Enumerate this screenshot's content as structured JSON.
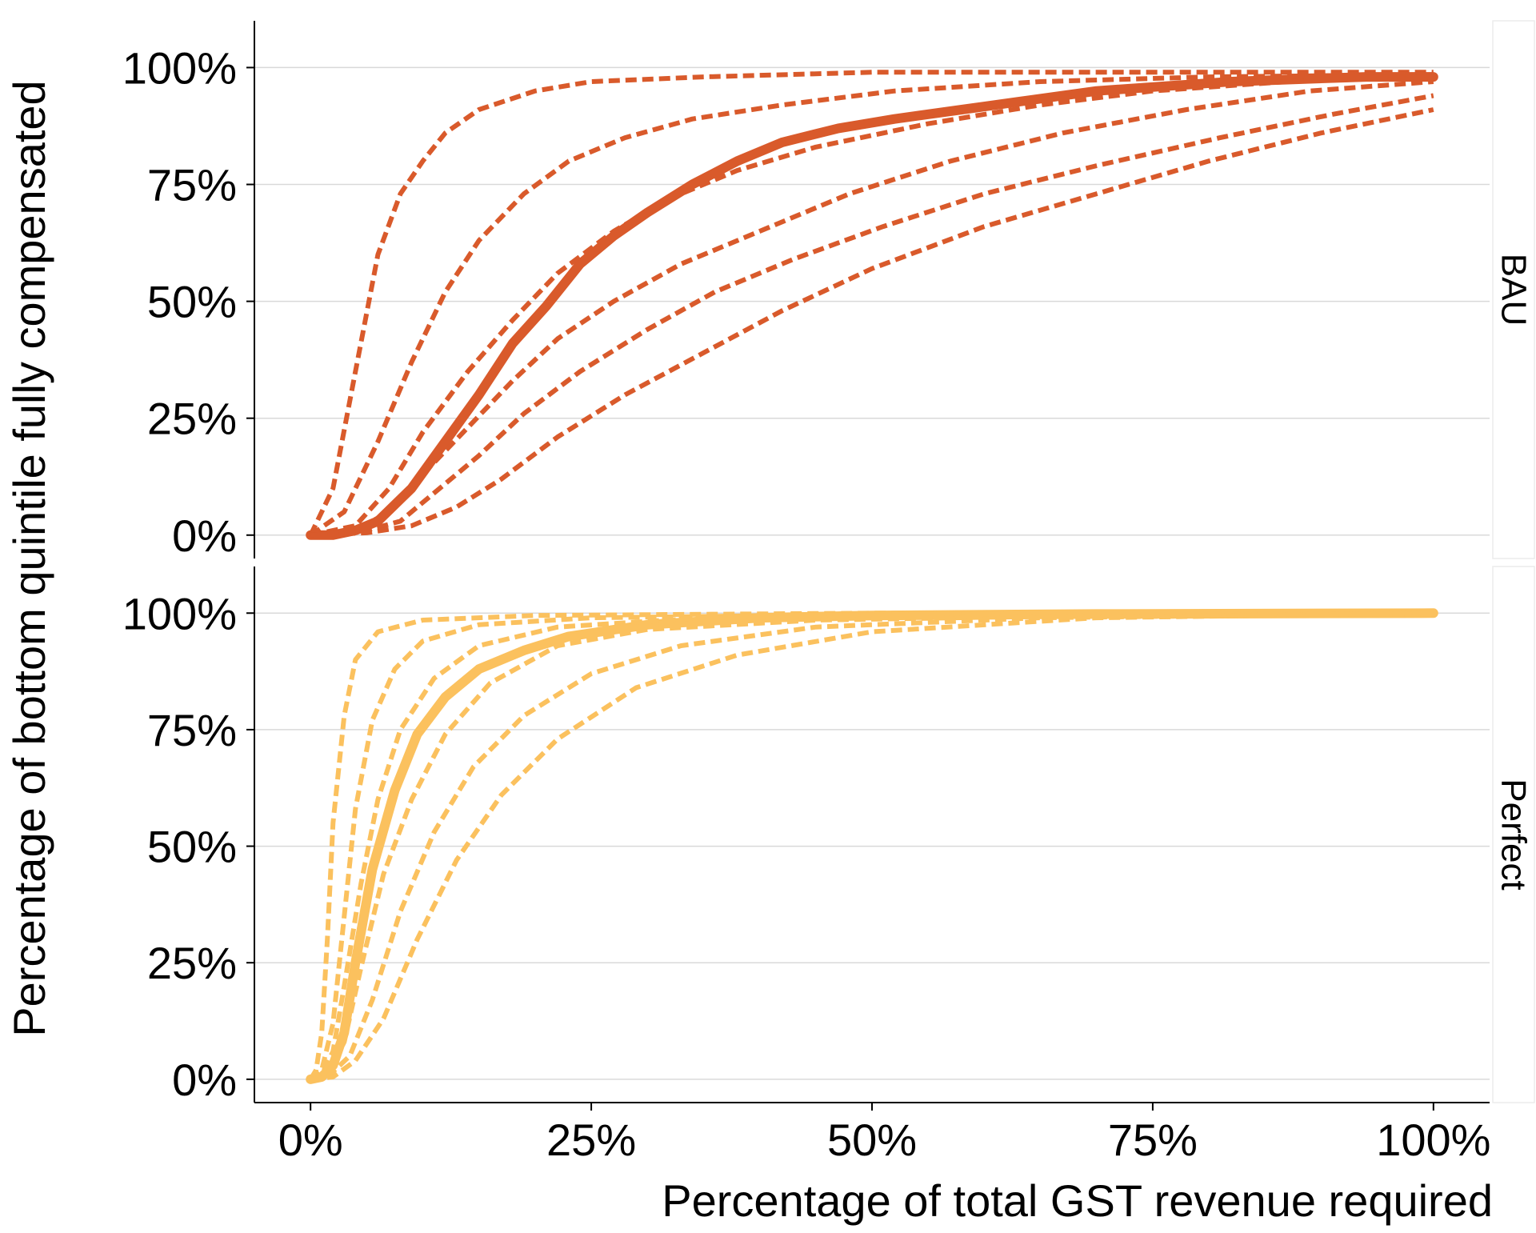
{
  "chart_data": {
    "type": "line",
    "xlabel": "Percentage of total GST revenue required",
    "ylabel": "Percentage of bottom quintile fully compensated",
    "xlim": [
      -0.05,
      1.05
    ],
    "x_ticks": [
      0,
      0.25,
      0.5,
      0.75,
      1.0
    ],
    "x_tick_labels": [
      "0%",
      "25%",
      "50%",
      "75%",
      "100%"
    ],
    "y_ticks": [
      0,
      0.25,
      0.5,
      0.75,
      1.0
    ],
    "y_tick_labels": [
      "0%",
      "25%",
      "50%",
      "75%",
      "100%"
    ],
    "ylim": [
      -0.05,
      1.1
    ],
    "grid": "horizontal",
    "legend": "none",
    "panels": [
      {
        "strip": "BAU",
        "color": "#d95a2b",
        "series": [
          {
            "style": "solid",
            "points": [
              [
                0,
                0
              ],
              [
                0.02,
                0
              ],
              [
                0.04,
                0.01
              ],
              [
                0.06,
                0.03
              ],
              [
                0.09,
                0.1
              ],
              [
                0.12,
                0.2
              ],
              [
                0.15,
                0.3
              ],
              [
                0.18,
                0.41
              ],
              [
                0.21,
                0.49
              ],
              [
                0.24,
                0.58
              ],
              [
                0.27,
                0.64
              ],
              [
                0.3,
                0.69
              ],
              [
                0.34,
                0.75
              ],
              [
                0.38,
                0.8
              ],
              [
                0.42,
                0.84
              ],
              [
                0.47,
                0.87
              ],
              [
                0.52,
                0.89
              ],
              [
                0.58,
                0.91
              ],
              [
                0.64,
                0.93
              ],
              [
                0.7,
                0.95
              ],
              [
                0.76,
                0.96
              ],
              [
                0.82,
                0.97
              ],
              [
                0.88,
                0.975
              ],
              [
                0.94,
                0.98
              ],
              [
                1.0,
                0.98
              ]
            ]
          },
          {
            "style": "dashed",
            "points": [
              [
                0,
                0
              ],
              [
                0.02,
                0.1
              ],
              [
                0.04,
                0.35
              ],
              [
                0.06,
                0.6
              ],
              [
                0.08,
                0.73
              ],
              [
                0.1,
                0.8
              ],
              [
                0.12,
                0.86
              ],
              [
                0.15,
                0.91
              ],
              [
                0.2,
                0.95
              ],
              [
                0.25,
                0.97
              ],
              [
                0.35,
                0.98
              ],
              [
                0.5,
                0.99
              ],
              [
                0.7,
                0.99
              ],
              [
                1.0,
                0.99
              ]
            ]
          },
          {
            "style": "dashed",
            "points": [
              [
                0,
                0
              ],
              [
                0.03,
                0.05
              ],
              [
                0.06,
                0.2
              ],
              [
                0.09,
                0.37
              ],
              [
                0.12,
                0.52
              ],
              [
                0.15,
                0.63
              ],
              [
                0.19,
                0.73
              ],
              [
                0.23,
                0.8
              ],
              [
                0.28,
                0.85
              ],
              [
                0.34,
                0.89
              ],
              [
                0.42,
                0.92
              ],
              [
                0.52,
                0.95
              ],
              [
                0.65,
                0.97
              ],
              [
                0.8,
                0.98
              ],
              [
                1.0,
                0.985
              ]
            ]
          },
          {
            "style": "dashed",
            "points": [
              [
                0,
                0
              ],
              [
                0.04,
                0.02
              ],
              [
                0.07,
                0.1
              ],
              [
                0.1,
                0.22
              ],
              [
                0.14,
                0.35
              ],
              [
                0.18,
                0.46
              ],
              [
                0.22,
                0.56
              ],
              [
                0.27,
                0.65
              ],
              [
                0.32,
                0.72
              ],
              [
                0.38,
                0.78
              ],
              [
                0.45,
                0.83
              ],
              [
                0.55,
                0.88
              ],
              [
                0.65,
                0.92
              ],
              [
                0.75,
                0.95
              ],
              [
                0.87,
                0.97
              ],
              [
                1.0,
                0.98
              ]
            ]
          },
          {
            "style": "dashed",
            "points": [
              [
                0,
                0
              ],
              [
                0.04,
                0.01
              ],
              [
                0.07,
                0.05
              ],
              [
                0.1,
                0.13
              ],
              [
                0.14,
                0.23
              ],
              [
                0.18,
                0.33
              ],
              [
                0.22,
                0.42
              ],
              [
                0.27,
                0.5
              ],
              [
                0.33,
                0.58
              ],
              [
                0.4,
                0.65
              ],
              [
                0.48,
                0.73
              ],
              [
                0.57,
                0.8
              ],
              [
                0.67,
                0.86
              ],
              [
                0.78,
                0.91
              ],
              [
                0.89,
                0.95
              ],
              [
                1.0,
                0.97
              ]
            ]
          },
          {
            "style": "dashed",
            "points": [
              [
                0,
                0
              ],
              [
                0.05,
                0.01
              ],
              [
                0.08,
                0.03
              ],
              [
                0.11,
                0.09
              ],
              [
                0.15,
                0.17
              ],
              [
                0.19,
                0.26
              ],
              [
                0.24,
                0.35
              ],
              [
                0.3,
                0.44
              ],
              [
                0.36,
                0.52
              ],
              [
                0.43,
                0.59
              ],
              [
                0.51,
                0.66
              ],
              [
                0.6,
                0.73
              ],
              [
                0.7,
                0.79
              ],
              [
                0.81,
                0.85
              ],
              [
                0.91,
                0.9
              ],
              [
                1.0,
                0.94
              ]
            ]
          },
          {
            "style": "dashed",
            "points": [
              [
                0,
                0
              ],
              [
                0.05,
                0.005
              ],
              [
                0.09,
                0.02
              ],
              [
                0.13,
                0.06
              ],
              [
                0.17,
                0.12
              ],
              [
                0.22,
                0.21
              ],
              [
                0.28,
                0.3
              ],
              [
                0.35,
                0.39
              ],
              [
                0.42,
                0.48
              ],
              [
                0.5,
                0.57
              ],
              [
                0.6,
                0.66
              ],
              [
                0.7,
                0.73
              ],
              [
                0.8,
                0.8
              ],
              [
                0.9,
                0.86
              ],
              [
                1.0,
                0.91
              ]
            ]
          }
        ]
      },
      {
        "strip": "Perfect",
        "color": "#fbc15e",
        "series": [
          {
            "style": "solid",
            "points": [
              [
                0,
                0
              ],
              [
                0.01,
                0.005
              ],
              [
                0.02,
                0.03
              ],
              [
                0.03,
                0.1
              ],
              [
                0.04,
                0.25
              ],
              [
                0.055,
                0.45
              ],
              [
                0.075,
                0.62
              ],
              [
                0.095,
                0.74
              ],
              [
                0.12,
                0.82
              ],
              [
                0.15,
                0.88
              ],
              [
                0.19,
                0.92
              ],
              [
                0.23,
                0.95
              ],
              [
                0.3,
                0.975
              ],
              [
                0.4,
                0.99
              ],
              [
                0.5,
                0.995
              ],
              [
                0.7,
                0.998
              ],
              [
                1.0,
                1.0
              ]
            ]
          },
          {
            "style": "dashed",
            "points": [
              [
                0,
                0
              ],
              [
                0.005,
                0.02
              ],
              [
                0.01,
                0.1
              ],
              [
                0.015,
                0.3
              ],
              [
                0.02,
                0.55
              ],
              [
                0.03,
                0.78
              ],
              [
                0.04,
                0.9
              ],
              [
                0.06,
                0.96
              ],
              [
                0.1,
                0.985
              ],
              [
                0.2,
                0.995
              ],
              [
                0.5,
                1.0
              ],
              [
                1.0,
                1.0
              ]
            ]
          },
          {
            "style": "dashed",
            "points": [
              [
                0,
                0
              ],
              [
                0.01,
                0.02
              ],
              [
                0.02,
                0.12
              ],
              [
                0.03,
                0.35
              ],
              [
                0.04,
                0.58
              ],
              [
                0.055,
                0.77
              ],
              [
                0.075,
                0.88
              ],
              [
                0.1,
                0.94
              ],
              [
                0.15,
                0.975
              ],
              [
                0.25,
                0.99
              ],
              [
                0.5,
                0.997
              ],
              [
                1.0,
                1.0
              ]
            ]
          },
          {
            "style": "dashed",
            "points": [
              [
                0,
                0
              ],
              [
                0.01,
                0.01
              ],
              [
                0.02,
                0.06
              ],
              [
                0.03,
                0.2
              ],
              [
                0.045,
                0.42
              ],
              [
                0.06,
                0.6
              ],
              [
                0.08,
                0.75
              ],
              [
                0.11,
                0.86
              ],
              [
                0.15,
                0.93
              ],
              [
                0.22,
                0.97
              ],
              [
                0.35,
                0.99
              ],
              [
                0.6,
                0.998
              ],
              [
                1.0,
                1.0
              ]
            ]
          },
          {
            "style": "dashed",
            "points": [
              [
                0,
                0
              ],
              [
                0.015,
                0.01
              ],
              [
                0.03,
                0.08
              ],
              [
                0.045,
                0.24
              ],
              [
                0.065,
                0.44
              ],
              [
                0.09,
                0.6
              ],
              [
                0.12,
                0.74
              ],
              [
                0.16,
                0.85
              ],
              [
                0.22,
                0.93
              ],
              [
                0.3,
                0.965
              ],
              [
                0.45,
                0.985
              ],
              [
                0.7,
                0.995
              ],
              [
                1.0,
                1.0
              ]
            ]
          },
          {
            "style": "dashed",
            "points": [
              [
                0,
                0
              ],
              [
                0.015,
                0.005
              ],
              [
                0.035,
                0.05
              ],
              [
                0.055,
                0.17
              ],
              [
                0.08,
                0.36
              ],
              [
                0.11,
                0.53
              ],
              [
                0.145,
                0.67
              ],
              [
                0.19,
                0.78
              ],
              [
                0.25,
                0.87
              ],
              [
                0.33,
                0.93
              ],
              [
                0.45,
                0.97
              ],
              [
                0.65,
                0.99
              ],
              [
                1.0,
                1.0
              ]
            ]
          },
          {
            "style": "dashed",
            "points": [
              [
                0,
                0
              ],
              [
                0.02,
                0.005
              ],
              [
                0.04,
                0.04
              ],
              [
                0.065,
                0.13
              ],
              [
                0.095,
                0.3
              ],
              [
                0.13,
                0.47
              ],
              [
                0.17,
                0.61
              ],
              [
                0.22,
                0.73
              ],
              [
                0.29,
                0.84
              ],
              [
                0.38,
                0.91
              ],
              [
                0.5,
                0.96
              ],
              [
                0.7,
                0.99
              ],
              [
                1.0,
                1.0
              ]
            ]
          }
        ]
      }
    ]
  }
}
